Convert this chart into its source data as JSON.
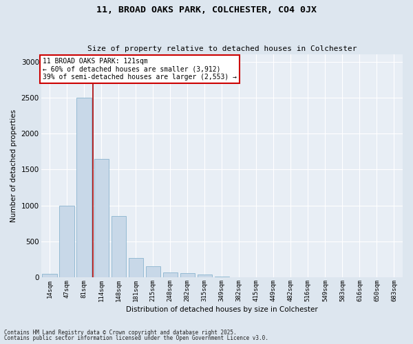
{
  "title1": "11, BROAD OAKS PARK, COLCHESTER, CO4 0JX",
  "title2": "Size of property relative to detached houses in Colchester",
  "xlabel": "Distribution of detached houses by size in Colchester",
  "ylabel": "Number of detached properties",
  "categories": [
    "14sqm",
    "47sqm",
    "81sqm",
    "114sqm",
    "148sqm",
    "181sqm",
    "215sqm",
    "248sqm",
    "282sqm",
    "315sqm",
    "349sqm",
    "382sqm",
    "415sqm",
    "449sqm",
    "482sqm",
    "516sqm",
    "549sqm",
    "583sqm",
    "616sqm",
    "650sqm",
    "683sqm"
  ],
  "values": [
    50,
    1000,
    2500,
    1650,
    850,
    270,
    150,
    65,
    55,
    42,
    12,
    4,
    2,
    0,
    0,
    0,
    0,
    0,
    0,
    0,
    0
  ],
  "bar_color": "#c8d8e8",
  "bar_edge_color": "#7aaac8",
  "vline_x": 2.5,
  "vline_color": "#aa0000",
  "annotation_text": "11 BROAD OAKS PARK: 121sqm\n← 60% of detached houses are smaller (3,912)\n39% of semi-detached houses are larger (2,553) →",
  "annotation_box_color": "#ffffff",
  "annotation_box_edge_color": "#cc0000",
  "ylim": [
    0,
    3100
  ],
  "yticks": [
    0,
    500,
    1000,
    1500,
    2000,
    2500,
    3000
  ],
  "bg_color": "#dde6ef",
  "plot_bg_color": "#e8eef5",
  "grid_color": "#ffffff",
  "footer1": "Contains HM Land Registry data © Crown copyright and database right 2025.",
  "footer2": "Contains public sector information licensed under the Open Government Licence v3.0."
}
